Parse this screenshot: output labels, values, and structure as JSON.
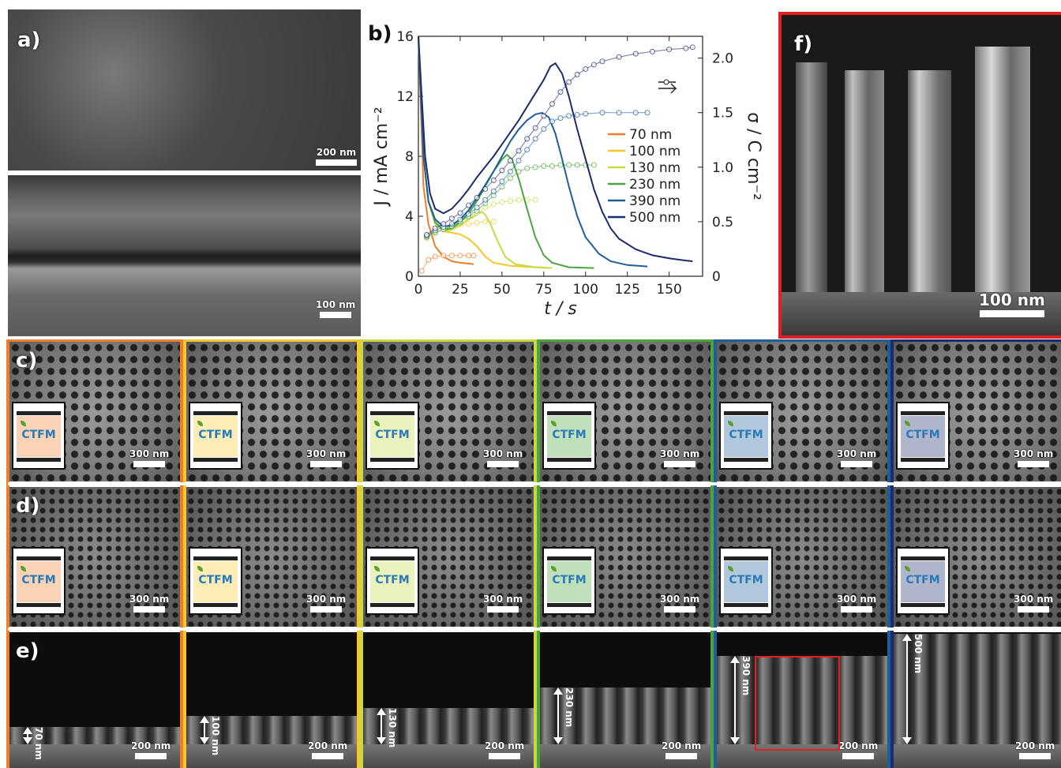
{
  "panels": {
    "a": {
      "label": "a)",
      "top_scale": "200 nm",
      "bottom_scale": "100 nm"
    },
    "b": {
      "label": "b)"
    },
    "c": {
      "label": "c)"
    },
    "d": {
      "label": "d)"
    },
    "e": {
      "label": "e)"
    },
    "f": {
      "label": "f)",
      "scale": "100 nm"
    }
  },
  "logo_text": "CTFM",
  "columns": [
    {
      "color": "#f07d2a",
      "plan_scale": "300 nm",
      "cross_scale": "200 nm",
      "height": "70 nm"
    },
    {
      "color": "#f5c82a",
      "plan_scale": "300 nm",
      "cross_scale": "200 nm",
      "height": "100 nm"
    },
    {
      "color": "#c8d943",
      "plan_scale": "300 nm",
      "cross_scale": "200 nm",
      "height": "130 nm"
    },
    {
      "color": "#4aa63c",
      "plan_scale": "300 nm",
      "cross_scale": "200 nm",
      "height": "230 nm"
    },
    {
      "color": "#1f5e99",
      "plan_scale": "300 nm",
      "cross_scale": "200 nm",
      "height": "390 nm"
    },
    {
      "color": "#1c2a6e",
      "plan_scale": "300 nm",
      "cross_scale": "200 nm",
      "height": "500 nm"
    }
  ],
  "chart_data": {
    "type": "line",
    "xlabel": "t / s",
    "ylabel": "J / mA cm⁻²",
    "y2label": "σ / C cm⁻²",
    "xlim": [
      0,
      170
    ],
    "ylim": [
      0,
      16
    ],
    "y2lim": [
      0,
      2.2
    ],
    "xticks": [
      0,
      25,
      50,
      75,
      100,
      125,
      150
    ],
    "yticks": [
      0,
      4,
      8,
      12,
      16
    ],
    "y2ticks": [
      0,
      0.5,
      1.0,
      1.5,
      2.0
    ],
    "y2ticklabels": [
      "0",
      "0.5",
      "1.0",
      "1.5",
      "2.0"
    ],
    "legend_position": "right",
    "series": [
      {
        "name": "70 nm",
        "color": "#f07d2a",
        "current": [
          [
            0,
            16
          ],
          [
            3,
            6
          ],
          [
            6,
            3.5
          ],
          [
            10,
            2
          ],
          [
            15,
            1.3
          ],
          [
            20,
            1
          ],
          [
            25,
            0.9
          ],
          [
            30,
            0.85
          ],
          [
            33,
            0.8
          ]
        ],
        "charge": [
          [
            2,
            0.05
          ],
          [
            6,
            0.15
          ],
          [
            10,
            0.18
          ],
          [
            15,
            0.19
          ],
          [
            20,
            0.19
          ],
          [
            25,
            0.19
          ],
          [
            30,
            0.19
          ],
          [
            33,
            0.19
          ]
        ]
      },
      {
        "name": "100 nm",
        "color": "#f5c82a",
        "current": [
          [
            0,
            16
          ],
          [
            3,
            8
          ],
          [
            6,
            5
          ],
          [
            10,
            3.6
          ],
          [
            15,
            3
          ],
          [
            20,
            2.9
          ],
          [
            25,
            2.8
          ],
          [
            30,
            2.5
          ],
          [
            35,
            2
          ],
          [
            40,
            1.3
          ],
          [
            45,
            0.9
          ],
          [
            55,
            0.7
          ],
          [
            70,
            0.6
          ],
          [
            74,
            0.6
          ]
        ],
        "charge": [
          [
            5,
            0.35
          ],
          [
            10,
            0.4
          ],
          [
            15,
            0.43
          ],
          [
            20,
            0.45
          ],
          [
            25,
            0.47
          ],
          [
            30,
            0.48
          ],
          [
            35,
            0.49
          ],
          [
            40,
            0.5
          ],
          [
            45,
            0.5
          ]
        ]
      },
      {
        "name": "130 nm",
        "color": "#c8d943",
        "current": [
          [
            0,
            16
          ],
          [
            3,
            8
          ],
          [
            6,
            5
          ],
          [
            10,
            3.5
          ],
          [
            15,
            3
          ],
          [
            20,
            3.1
          ],
          [
            25,
            3.4
          ],
          [
            30,
            3.8
          ],
          [
            35,
            4.1
          ],
          [
            38,
            4.3
          ],
          [
            40,
            4.1
          ],
          [
            43,
            3.5
          ],
          [
            48,
            2.2
          ],
          [
            52,
            1.3
          ],
          [
            58,
            0.8
          ],
          [
            70,
            0.6
          ],
          [
            80,
            0.55
          ]
        ],
        "charge": [
          [
            5,
            0.36
          ],
          [
            10,
            0.4
          ],
          [
            15,
            0.43
          ],
          [
            20,
            0.46
          ],
          [
            25,
            0.5
          ],
          [
            30,
            0.54
          ],
          [
            35,
            0.58
          ],
          [
            40,
            0.63
          ],
          [
            45,
            0.66
          ],
          [
            50,
            0.68
          ],
          [
            55,
            0.69
          ],
          [
            60,
            0.7
          ],
          [
            65,
            0.7
          ],
          [
            70,
            0.7
          ]
        ]
      },
      {
        "name": "230 nm",
        "color": "#4aa63c",
        "current": [
          [
            0,
            16
          ],
          [
            3,
            8
          ],
          [
            6,
            5
          ],
          [
            10,
            3.6
          ],
          [
            15,
            3.1
          ],
          [
            20,
            3.2
          ],
          [
            25,
            3.6
          ],
          [
            30,
            4.2
          ],
          [
            35,
            5
          ],
          [
            40,
            6
          ],
          [
            45,
            7
          ],
          [
            50,
            7.8
          ],
          [
            53,
            8.1
          ],
          [
            56,
            7.8
          ],
          [
            60,
            6.5
          ],
          [
            65,
            4.5
          ],
          [
            70,
            2.6
          ],
          [
            75,
            1.4
          ],
          [
            80,
            0.9
          ],
          [
            90,
            0.6
          ],
          [
            105,
            0.55
          ]
        ],
        "charge": [
          [
            5,
            0.36
          ],
          [
            10,
            0.4
          ],
          [
            15,
            0.43
          ],
          [
            20,
            0.46
          ],
          [
            25,
            0.5
          ],
          [
            30,
            0.55
          ],
          [
            35,
            0.6
          ],
          [
            40,
            0.67
          ],
          [
            45,
            0.74
          ],
          [
            50,
            0.82
          ],
          [
            55,
            0.9
          ],
          [
            60,
            0.96
          ],
          [
            65,
            0.99
          ],
          [
            70,
            1.0
          ],
          [
            75,
            1.01
          ],
          [
            80,
            1.01
          ],
          [
            85,
            1.02
          ],
          [
            90,
            1.02
          ],
          [
            95,
            1.02
          ],
          [
            100,
            1.02
          ],
          [
            105,
            1.02
          ]
        ]
      },
      {
        "name": "390 nm",
        "color": "#1f5e99",
        "current": [
          [
            0,
            16
          ],
          [
            3,
            8
          ],
          [
            6,
            5
          ],
          [
            10,
            3.8
          ],
          [
            15,
            3.3
          ],
          [
            20,
            3.4
          ],
          [
            25,
            3.8
          ],
          [
            30,
            4.4
          ],
          [
            35,
            5.2
          ],
          [
            40,
            6.1
          ],
          [
            45,
            7
          ],
          [
            50,
            8
          ],
          [
            55,
            9
          ],
          [
            60,
            9.8
          ],
          [
            65,
            10.4
          ],
          [
            70,
            10.8
          ],
          [
            74,
            10.9
          ],
          [
            78,
            10.6
          ],
          [
            82,
            9.5
          ],
          [
            86,
            7.8
          ],
          [
            90,
            6
          ],
          [
            95,
            4
          ],
          [
            100,
            2.6
          ],
          [
            108,
            1.5
          ],
          [
            115,
            1
          ],
          [
            125,
            0.75
          ],
          [
            137,
            0.65
          ]
        ],
        "charge": [
          [
            5,
            0.37
          ],
          [
            10,
            0.42
          ],
          [
            15,
            0.45
          ],
          [
            20,
            0.48
          ],
          [
            25,
            0.52
          ],
          [
            30,
            0.57
          ],
          [
            35,
            0.63
          ],
          [
            40,
            0.7
          ],
          [
            45,
            0.78
          ],
          [
            50,
            0.87
          ],
          [
            55,
            0.96
          ],
          [
            60,
            1.06
          ],
          [
            65,
            1.16
          ],
          [
            70,
            1.26
          ],
          [
            75,
            1.35
          ],
          [
            80,
            1.42
          ],
          [
            85,
            1.45
          ],
          [
            90,
            1.47
          ],
          [
            95,
            1.48
          ],
          [
            100,
            1.49
          ],
          [
            110,
            1.5
          ],
          [
            120,
            1.5
          ],
          [
            130,
            1.5
          ],
          [
            137,
            1.5
          ]
        ]
      },
      {
        "name": "500 nm",
        "color": "#1c2a6e",
        "current": [
          [
            0,
            16
          ],
          [
            2,
            12
          ],
          [
            4,
            8
          ],
          [
            7,
            5.5
          ],
          [
            10,
            4.5
          ],
          [
            15,
            4.2
          ],
          [
            20,
            4.5
          ],
          [
            25,
            5.1
          ],
          [
            30,
            5.8
          ],
          [
            35,
            6.6
          ],
          [
            40,
            7.3
          ],
          [
            45,
            8
          ],
          [
            50,
            8.8
          ],
          [
            55,
            9.6
          ],
          [
            60,
            10.4
          ],
          [
            65,
            11.3
          ],
          [
            70,
            12.2
          ],
          [
            75,
            13.1
          ],
          [
            79,
            14
          ],
          [
            82,
            14.2
          ],
          [
            86,
            13.5
          ],
          [
            90,
            12
          ],
          [
            95,
            9.8
          ],
          [
            100,
            7.8
          ],
          [
            105,
            5.8
          ],
          [
            110,
            4.3
          ],
          [
            115,
            3.2
          ],
          [
            120,
            2.5
          ],
          [
            130,
            1.8
          ],
          [
            140,
            1.4
          ],
          [
            150,
            1.2
          ],
          [
            160,
            1.05
          ],
          [
            164,
            1
          ]
        ],
        "charge": [
          [
            5,
            0.38
          ],
          [
            10,
            0.44
          ],
          [
            15,
            0.48
          ],
          [
            20,
            0.53
          ],
          [
            25,
            0.58
          ],
          [
            30,
            0.65
          ],
          [
            35,
            0.72
          ],
          [
            40,
            0.8
          ],
          [
            45,
            0.88
          ],
          [
            50,
            0.97
          ],
          [
            55,
            1.06
          ],
          [
            60,
            1.15
          ],
          [
            65,
            1.26
          ],
          [
            70,
            1.36
          ],
          [
            75,
            1.47
          ],
          [
            80,
            1.58
          ],
          [
            85,
            1.69
          ],
          [
            90,
            1.78
          ],
          [
            95,
            1.85
          ],
          [
            100,
            1.9
          ],
          [
            105,
            1.94
          ],
          [
            110,
            1.97
          ],
          [
            120,
            2.01
          ],
          [
            130,
            2.04
          ],
          [
            140,
            2.06
          ],
          [
            150,
            2.08
          ],
          [
            160,
            2.09
          ],
          [
            164,
            2.1
          ]
        ]
      }
    ]
  }
}
